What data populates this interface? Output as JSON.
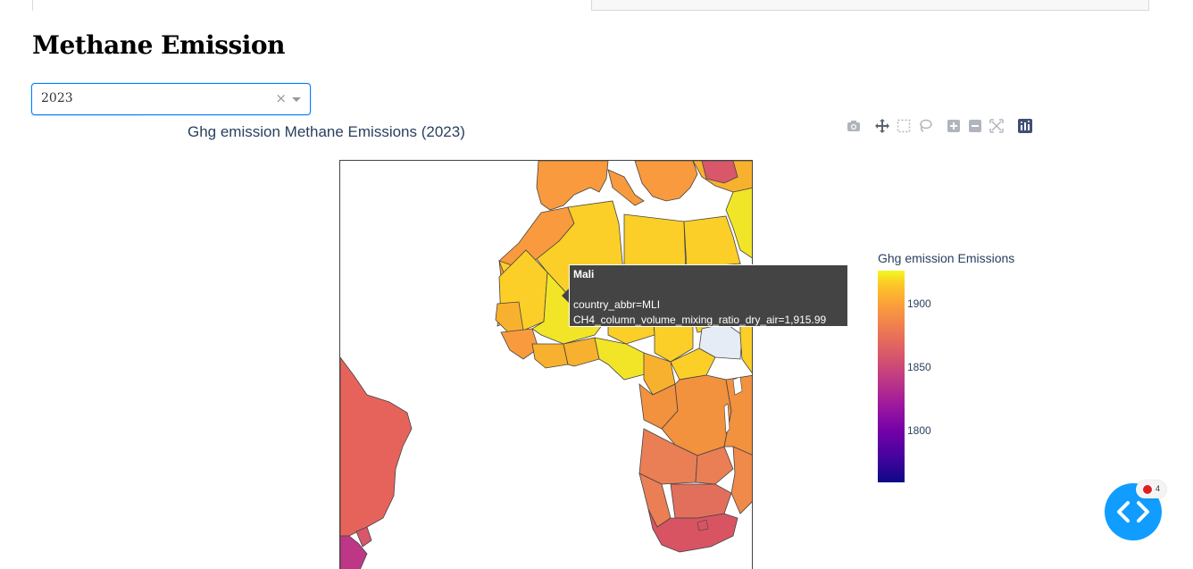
{
  "page": {
    "title": "Methane Emission"
  },
  "year_dropdown": {
    "selected_value": "2023",
    "clear_glyph": "×"
  },
  "chart": {
    "title": "Ghg emission Methane Emissions (2023)",
    "modebar": [
      {
        "name": "camera-icon",
        "glyph": "📷"
      },
      {
        "name": "pan-icon",
        "glyph": "✥"
      },
      {
        "name": "box-select-icon",
        "glyph": "⬚"
      },
      {
        "name": "lasso-select-icon",
        "glyph": "◯"
      },
      {
        "name": "zoom-in-icon",
        "glyph": "⊞"
      },
      {
        "name": "zoom-out-icon",
        "glyph": "⊟"
      },
      {
        "name": "reset-view-icon",
        "glyph": "⤧"
      },
      {
        "name": "plotly-logo-icon",
        "glyph": "▥"
      }
    ],
    "tooltip": {
      "country": "Mali",
      "line_abbr": "country_abbr=MLI",
      "line_value": "CH4_column_volume_mixing_ratio_dry_air=1,915.99"
    },
    "colorbar": {
      "title": "Ghg emission Emissions",
      "ticks": [
        "1900",
        "1850",
        "1800"
      ],
      "colorscale": "plasma"
    }
  },
  "chart_data": {
    "type": "choropleth",
    "title": "Ghg emission Methane Emissions (2023)",
    "colorbar_title": "Ghg emission Emissions",
    "color_range": [
      1762,
      1925
    ],
    "colorbar_ticks": [
      1800,
      1850,
      1900
    ],
    "hover_point": {
      "country": "Mali",
      "country_abbr": "MLI",
      "CH4_column_volume_mixing_ratio_dry_air": 1915.99
    }
  },
  "debug_fab": {
    "badge_count": "4"
  }
}
